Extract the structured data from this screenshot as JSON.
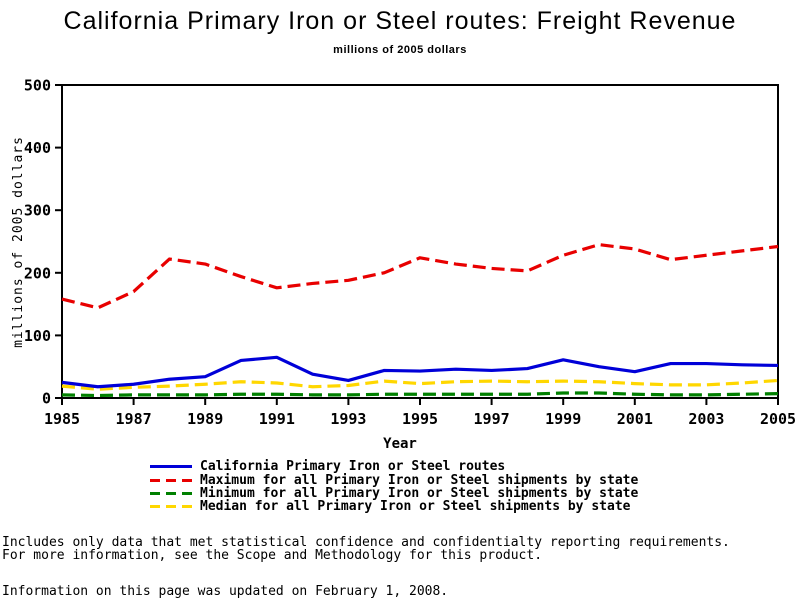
{
  "title": "California Primary Iron or Steel routes: Freight Revenue",
  "subtitle": "millions of 2005 dollars",
  "chart_data": {
    "type": "line",
    "title": "California Primary Iron or Steel routes: Freight Revenue",
    "subtitle": "millions of 2005 dollars",
    "xlabel": "Year",
    "ylabel": "millions of 2005 dollars",
    "xlim": [
      1985,
      2005
    ],
    "ylim": [
      0,
      500
    ],
    "xticks": [
      1985,
      1987,
      1989,
      1991,
      1993,
      1995,
      1997,
      1999,
      2001,
      2003,
      2005
    ],
    "yticks": [
      0,
      100,
      200,
      300,
      400,
      500
    ],
    "grid": false,
    "legend_position": "bottom",
    "x": [
      1985,
      1986,
      1987,
      1988,
      1989,
      1990,
      1991,
      1992,
      1993,
      1994,
      1995,
      1996,
      1997,
      1998,
      1999,
      2000,
      2001,
      2002,
      2003,
      2004,
      2005
    ],
    "series": [
      {
        "name": "California Primary Iron or Steel routes",
        "color": "#0000d8",
        "style": "solid",
        "values": [
          25,
          18,
          22,
          30,
          34,
          60,
          65,
          38,
          28,
          44,
          43,
          46,
          44,
          47,
          61,
          50,
          42,
          55,
          55,
          53,
          52
        ]
      },
      {
        "name": "Maximum for all Primary Iron or Steel shipments by state",
        "color": "#e80000",
        "style": "dashed",
        "values": [
          158,
          144,
          170,
          222,
          214,
          194,
          176,
          183,
          188,
          200,
          224,
          214,
          207,
          203,
          228,
          245,
          238,
          221,
          228,
          235,
          242
        ]
      },
      {
        "name": "Minimum for all Primary Iron or Steel shipments by state",
        "color": "#008000",
        "style": "dashed",
        "values": [
          5,
          4,
          5,
          5,
          5,
          6,
          6,
          5,
          5,
          6,
          6,
          6,
          6,
          6,
          8,
          8,
          6,
          5,
          5,
          6,
          7
        ]
      },
      {
        "name": "Median for all Primary Iron or Steel shipments by state",
        "color": "#ffd700",
        "style": "dashed",
        "values": [
          19,
          14,
          17,
          19,
          22,
          26,
          24,
          18,
          20,
          27,
          23,
          26,
          27,
          26,
          27,
          26,
          23,
          21,
          21,
          24,
          28
        ]
      }
    ]
  },
  "footer": {
    "line1": "Includes only data that met statistical confidence and confidentialty reporting requirements.",
    "line2": "For more information, see the Scope and Methodology for this product.",
    "line3": "Information on this page was updated on February 1, 2008."
  }
}
